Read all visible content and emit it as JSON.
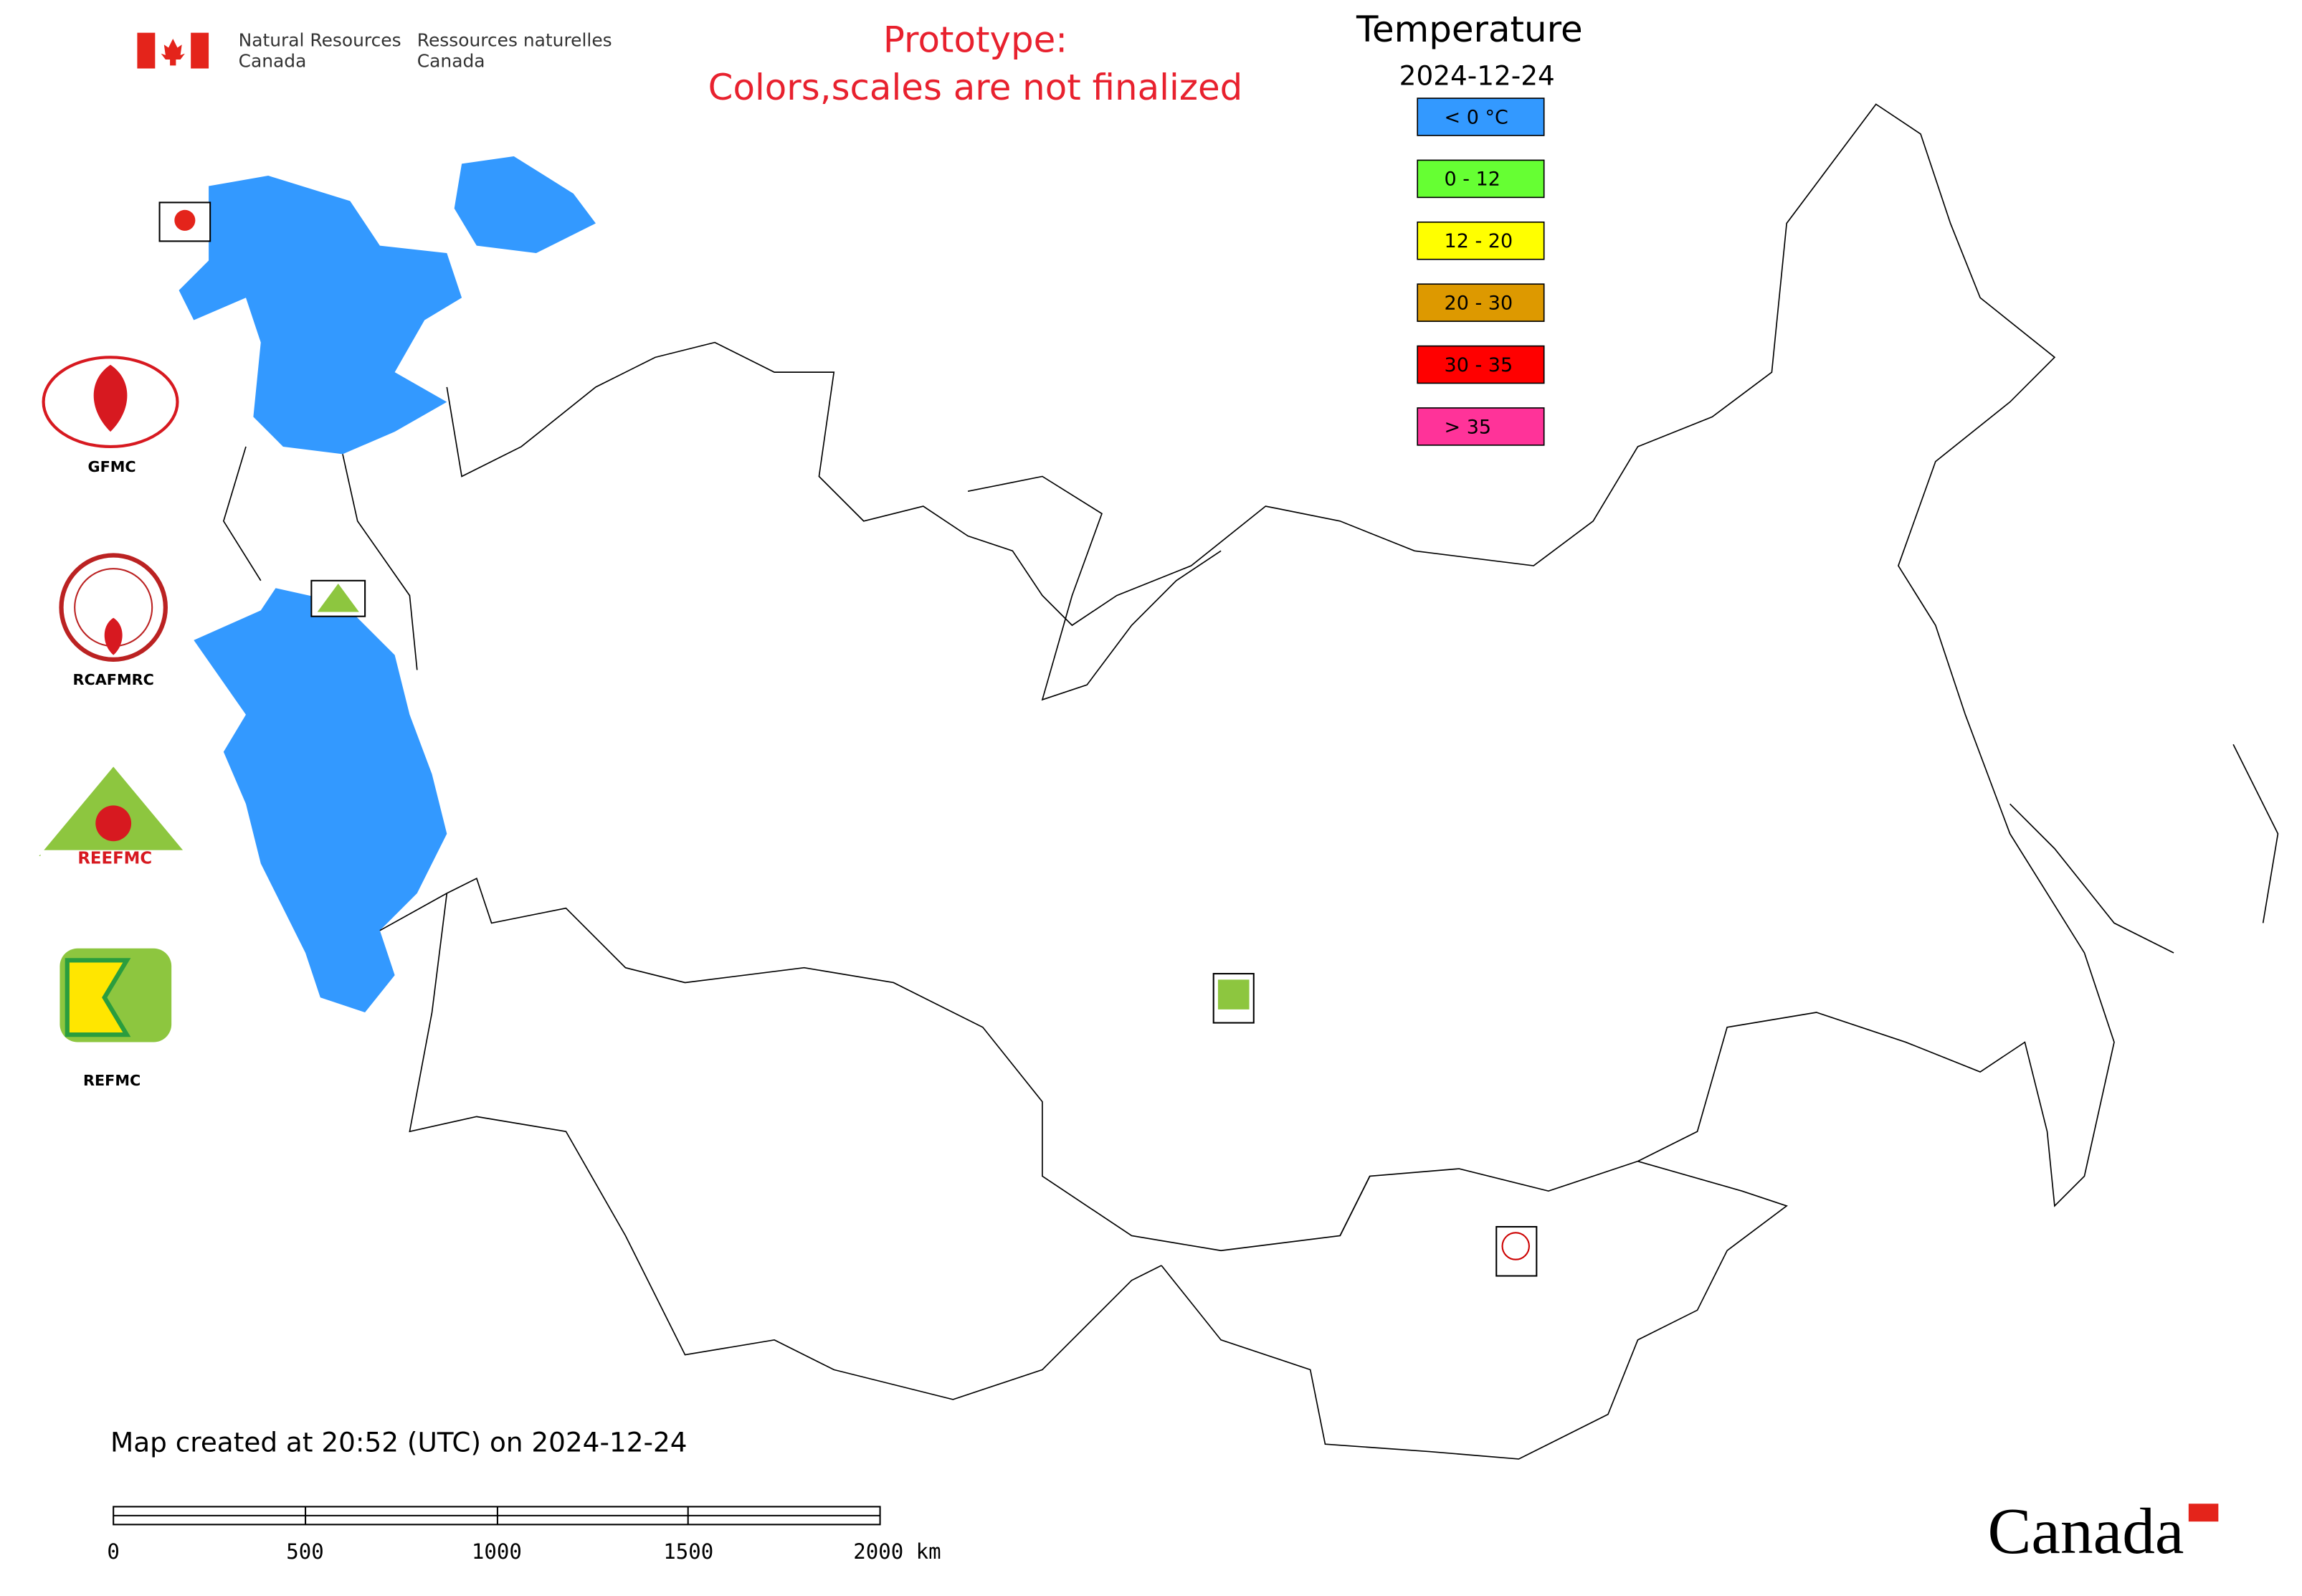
{
  "header": {
    "org_en_1": "Natural Resources",
    "org_en_2": "Canada",
    "org_fr_1": "Ressources naturelles",
    "org_fr_2": "Canada",
    "notice_1": "Prototype:",
    "notice_2": "Colors,scales are not finalized"
  },
  "legend": {
    "title": "Temperature",
    "date": "2024-12-24",
    "items": [
      {
        "label": "< 0 °C",
        "color": "#3399ff"
      },
      {
        "label": "0 - 12",
        "color": "#66ff33"
      },
      {
        "label": "12 - 20",
        "color": "#ffff00"
      },
      {
        "label": "20 - 30",
        "color": "#dd9900"
      },
      {
        "label": "30 - 35",
        "color": "#ff0000"
      },
      {
        "label": "> 35",
        "color": "#ff3399"
      }
    ]
  },
  "logos": [
    "GFMC",
    "RCAFMRC",
    "REFMC"
  ],
  "footer": {
    "created": "Map created at 20:52 (UTC) on 2024-12-24",
    "wordmark": "Canada"
  },
  "scale_bar": [
    "0",
    "500",
    "1000",
    "1500",
    "2000 km"
  ]
}
